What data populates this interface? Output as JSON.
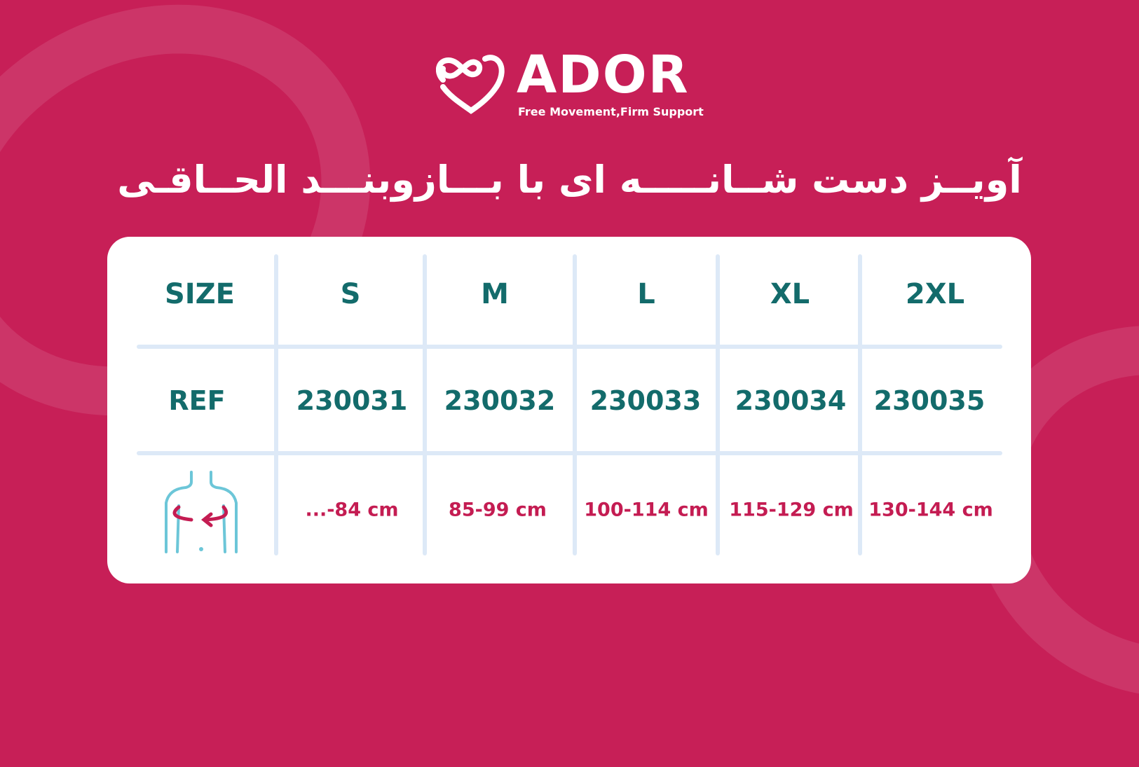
{
  "brand": {
    "name": "ADOR",
    "tagline": "Free Movement,Firm Support"
  },
  "title": "آویــز دست شــانـــــه ای با بـــازوبنـــد الحــاقـی",
  "table": {
    "header": [
      "SIZE",
      "S",
      "M",
      "L",
      "XL",
      "2XL"
    ],
    "ref_label": "REF",
    "refs": [
      "230031",
      "230032",
      "230033",
      "230034",
      "230035"
    ],
    "measure_icon": "chest-measure-icon",
    "ranges": [
      "...-84 cm",
      "85-99 cm",
      "100-114 cm",
      "115-129 cm",
      "130-144 cm"
    ]
  },
  "colors": {
    "background": "#c71f57",
    "heading": "#136b6b",
    "range": "#c41c52",
    "grid": "#dde9f7"
  }
}
